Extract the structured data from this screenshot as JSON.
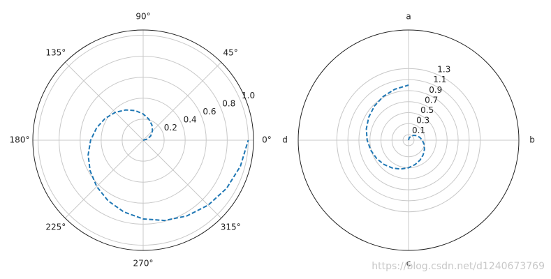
{
  "chart_data": [
    {
      "type": "polar",
      "theta_zero": "E",
      "clockwise": false,
      "rlabel_position": 22.5,
      "color": "#1f77b4",
      "grid": true,
      "theta": [
        0,
        15,
        30,
        45,
        60,
        75,
        90,
        105,
        120,
        135,
        150,
        165,
        180,
        195,
        210,
        225,
        240,
        255,
        270,
        285,
        300,
        315,
        330,
        345,
        360
      ],
      "r": [
        0,
        0.042,
        0.083,
        0.125,
        0.167,
        0.208,
        0.25,
        0.292,
        0.333,
        0.375,
        0.417,
        0.458,
        0.5,
        0.542,
        0.583,
        0.625,
        0.667,
        0.708,
        0.75,
        0.792,
        0.833,
        0.875,
        0.917,
        0.958,
        1
      ],
      "rlim": [
        0,
        1.05
      ],
      "rticks": [
        0.2,
        0.4,
        0.6,
        0.8,
        {
          "value": 1,
          "label": "1.0"
        }
      ],
      "thetaticks": [
        {
          "value": 0,
          "label": "0°"
        },
        {
          "value": 45,
          "label": "45°"
        },
        {
          "value": 90,
          "label": "90°"
        },
        {
          "value": 135,
          "label": "135°"
        },
        {
          "value": 180,
          "label": "180°"
        },
        {
          "value": 225,
          "label": "225°"
        },
        {
          "value": 270,
          "label": "270°"
        },
        {
          "value": 315,
          "label": "315°"
        }
      ]
    },
    {
      "type": "polar",
      "theta_zero": "N",
      "clockwise": true,
      "rlabel_position": 22.5,
      "color": "#1f77b4",
      "grid": true,
      "theta": [
        0,
        15,
        30,
        45,
        60,
        75,
        90,
        105,
        120,
        135,
        150,
        165,
        180,
        195,
        210,
        225,
        240,
        255,
        270,
        285,
        300,
        315,
        330,
        345,
        360
      ],
      "r": [
        0,
        0.042,
        0.083,
        0.125,
        0.167,
        0.208,
        0.25,
        0.292,
        0.333,
        0.375,
        0.417,
        0.458,
        0.5,
        0.542,
        0.583,
        0.625,
        0.667,
        0.708,
        0.75,
        0.792,
        0.833,
        0.875,
        0.917,
        0.958,
        1
      ],
      "rlim": [
        0,
        2
      ],
      "rticks": [
        0.1,
        0.3,
        0.5,
        0.7,
        0.9,
        1.1,
        1.3
      ],
      "thetaticks": [
        {
          "value": 0,
          "label": "a"
        },
        {
          "value": 90,
          "label": "b"
        },
        {
          "value": 180,
          "label": "c"
        },
        {
          "value": 270,
          "label": "d"
        }
      ]
    }
  ],
  "watermark": "https://blog.csdn.net/d1240673769"
}
